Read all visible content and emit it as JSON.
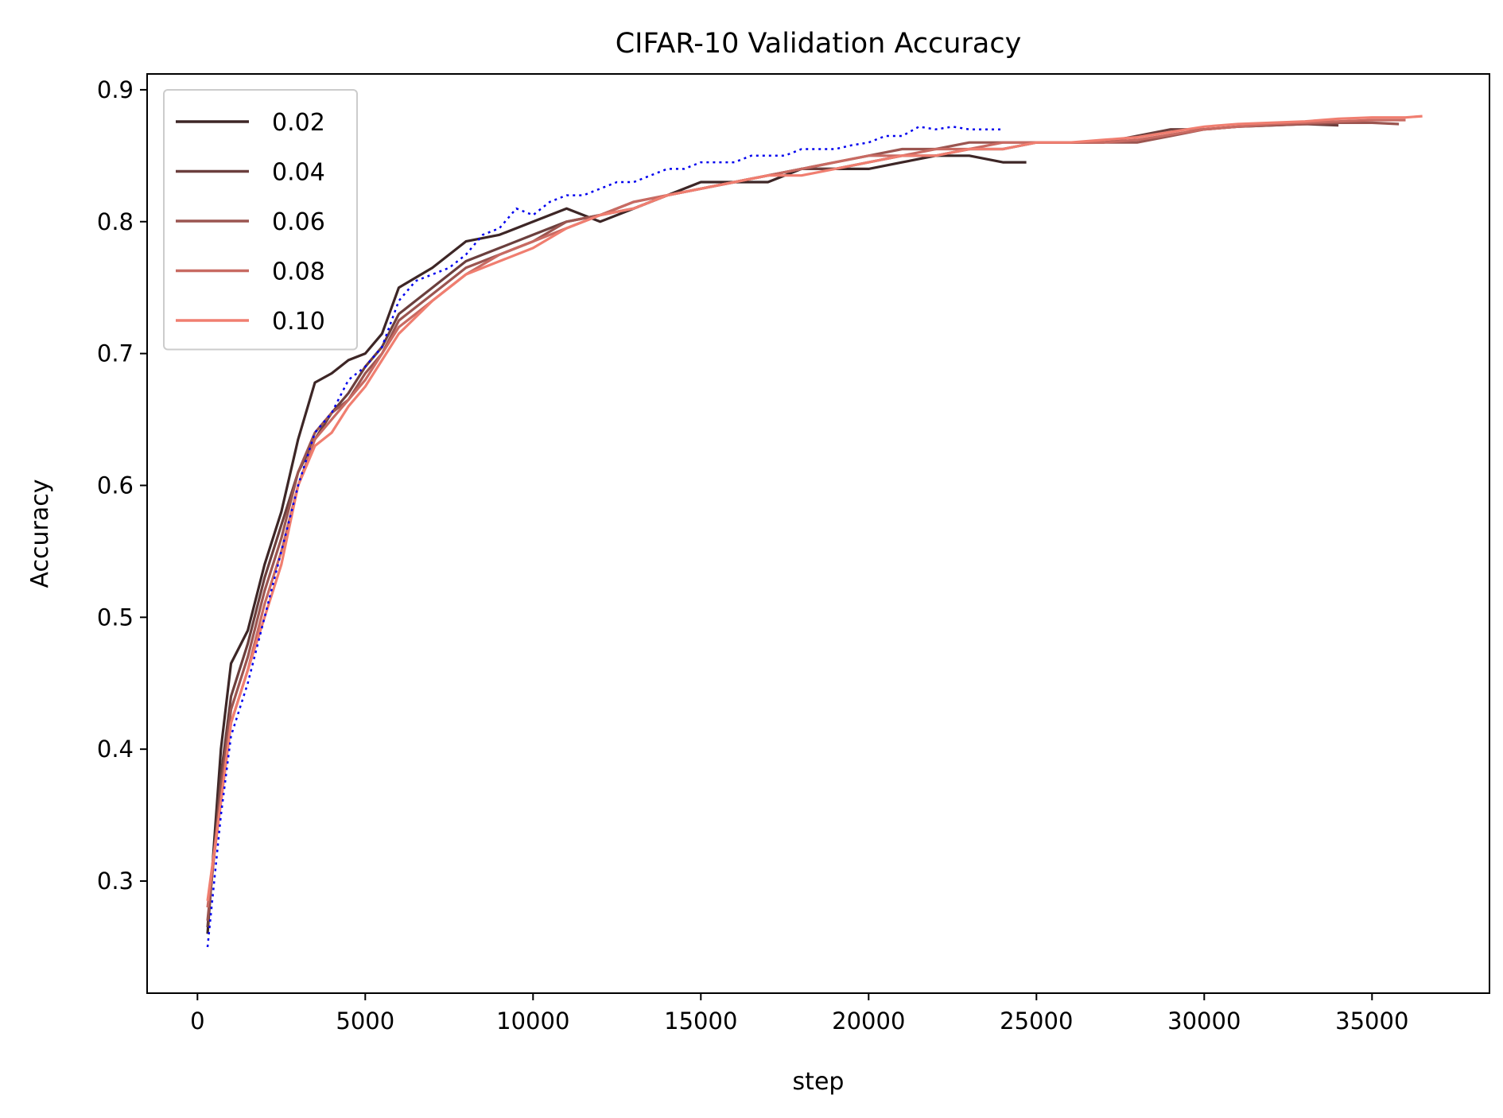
{
  "chart_data": {
    "type": "line",
    "title": "CIFAR-10 Validation Accuracy",
    "xlabel": "step",
    "ylabel": "Accuracy",
    "xlim": [
      -1500,
      38500
    ],
    "ylim": [
      0.215,
      0.912
    ],
    "xticks": [
      0,
      5000,
      10000,
      15000,
      20000,
      25000,
      30000,
      35000
    ],
    "yticks": [
      0.3,
      0.4,
      0.5,
      0.6,
      0.7,
      0.8,
      0.9
    ],
    "xtick_labels": [
      "0",
      "5000",
      "10000",
      "15000",
      "20000",
      "25000",
      "30000",
      "35000"
    ],
    "ytick_labels": [
      "0.3",
      "0.4",
      "0.5",
      "0.6",
      "0.7",
      "0.8",
      "0.9"
    ],
    "grid": false,
    "legend": "upper-left",
    "series": [
      {
        "name": "0.02",
        "color": "#3d2626",
        "dash": "solid",
        "x": [
          300,
          700,
          1000,
          1500,
          2000,
          2500,
          3000,
          3500,
          4000,
          4500,
          5000,
          5500,
          6000,
          7000,
          8000,
          9000,
          10000,
          11000,
          12000,
          13000,
          14000,
          15000,
          16000,
          17000,
          18000,
          19000,
          20000,
          21000,
          22000,
          23000,
          24000,
          24700
        ],
        "y": [
          0.26,
          0.4,
          0.465,
          0.49,
          0.54,
          0.58,
          0.635,
          0.678,
          0.685,
          0.695,
          0.7,
          0.715,
          0.75,
          0.765,
          0.785,
          0.79,
          0.8,
          0.81,
          0.8,
          0.81,
          0.82,
          0.83,
          0.83,
          0.83,
          0.84,
          0.84,
          0.84,
          0.845,
          0.85,
          0.85,
          0.845,
          0.845
        ]
      },
      {
        "name": "0.04",
        "color": "#6b3f3d",
        "dash": "solid",
        "x": [
          300,
          700,
          1000,
          1500,
          2000,
          2500,
          3000,
          3500,
          4000,
          4500,
          5000,
          5500,
          6000,
          7000,
          8000,
          9000,
          10000,
          11000,
          12000,
          13000,
          14000,
          15000,
          16000,
          17000,
          18000,
          19000,
          20000,
          21000,
          22000,
          23000,
          24000,
          25000,
          26000,
          27000,
          28000,
          29000,
          30000,
          31000,
          32000,
          33000,
          34000
        ],
        "y": [
          0.265,
          0.38,
          0.44,
          0.48,
          0.53,
          0.57,
          0.61,
          0.635,
          0.655,
          0.67,
          0.69,
          0.705,
          0.73,
          0.75,
          0.77,
          0.78,
          0.79,
          0.8,
          0.805,
          0.81,
          0.82,
          0.825,
          0.83,
          0.835,
          0.84,
          0.84,
          0.845,
          0.85,
          0.85,
          0.855,
          0.855,
          0.86,
          0.86,
          0.86,
          0.865,
          0.87,
          0.87,
          0.872,
          0.873,
          0.874,
          0.873
        ]
      },
      {
        "name": "0.06",
        "color": "#9b5550",
        "dash": "solid",
        "x": [
          300,
          700,
          1000,
          1500,
          2000,
          2500,
          3000,
          3500,
          4000,
          4500,
          5000,
          5500,
          6000,
          7000,
          8000,
          9000,
          10000,
          11000,
          12000,
          13000,
          14000,
          15000,
          16000,
          17000,
          18000,
          19000,
          20000,
          21000,
          22000,
          23000,
          24000,
          25000,
          26000,
          27000,
          28000,
          29000,
          30000,
          31000,
          32000,
          33000,
          34000,
          35000,
          35800
        ],
        "y": [
          0.27,
          0.37,
          0.43,
          0.47,
          0.52,
          0.56,
          0.61,
          0.64,
          0.655,
          0.665,
          0.685,
          0.7,
          0.725,
          0.745,
          0.765,
          0.775,
          0.785,
          0.8,
          0.805,
          0.815,
          0.82,
          0.825,
          0.83,
          0.835,
          0.84,
          0.845,
          0.85,
          0.855,
          0.855,
          0.86,
          0.86,
          0.86,
          0.86,
          0.86,
          0.86,
          0.865,
          0.87,
          0.872,
          0.873,
          0.874,
          0.875,
          0.875,
          0.874
        ]
      },
      {
        "name": "0.08",
        "color": "#c86a62",
        "dash": "solid",
        "x": [
          300,
          700,
          1000,
          1500,
          2000,
          2500,
          3000,
          3500,
          4000,
          4500,
          5000,
          5500,
          6000,
          7000,
          8000,
          9000,
          10000,
          11000,
          12000,
          13000,
          14000,
          15000,
          16000,
          17000,
          18000,
          19000,
          20000,
          21000,
          22000,
          23000,
          24000,
          25000,
          26000,
          27000,
          28000,
          29000,
          30000,
          31000,
          32000,
          33000,
          34000,
          35000,
          36000
        ],
        "y": [
          0.28,
          0.36,
          0.42,
          0.46,
          0.51,
          0.55,
          0.6,
          0.635,
          0.65,
          0.665,
          0.68,
          0.7,
          0.72,
          0.74,
          0.76,
          0.775,
          0.785,
          0.795,
          0.805,
          0.815,
          0.82,
          0.825,
          0.83,
          0.835,
          0.84,
          0.845,
          0.85,
          0.85,
          0.855,
          0.855,
          0.86,
          0.86,
          0.86,
          0.86,
          0.862,
          0.866,
          0.87,
          0.872,
          0.874,
          0.875,
          0.876,
          0.877,
          0.877
        ]
      },
      {
        "name": "0.10",
        "color": "#f07e70",
        "dash": "solid",
        "x": [
          300,
          700,
          1000,
          1500,
          2000,
          2500,
          3000,
          3500,
          4000,
          4500,
          5000,
          5500,
          6000,
          7000,
          8000,
          9000,
          10000,
          11000,
          12000,
          13000,
          14000,
          15000,
          16000,
          17000,
          18000,
          19000,
          20000,
          21000,
          22000,
          23000,
          24000,
          25000,
          26000,
          27000,
          28000,
          29000,
          30000,
          31000,
          32000,
          33000,
          34000,
          35000,
          36000,
          36500
        ],
        "y": [
          0.285,
          0.36,
          0.42,
          0.46,
          0.5,
          0.54,
          0.6,
          0.63,
          0.64,
          0.66,
          0.675,
          0.695,
          0.715,
          0.74,
          0.76,
          0.77,
          0.78,
          0.795,
          0.805,
          0.81,
          0.82,
          0.825,
          0.83,
          0.835,
          0.835,
          0.84,
          0.845,
          0.85,
          0.85,
          0.855,
          0.855,
          0.86,
          0.86,
          0.862,
          0.864,
          0.868,
          0.872,
          0.874,
          0.875,
          0.876,
          0.878,
          0.879,
          0.879,
          0.88
        ]
      },
      {
        "name": "",
        "color": "#0000ee",
        "dash": "dotted",
        "x": [
          300,
          700,
          1000,
          1500,
          2000,
          2500,
          3000,
          3500,
          4000,
          4500,
          5000,
          5500,
          6000,
          6500,
          7000,
          7500,
          8000,
          8500,
          9000,
          9500,
          10000,
          10500,
          11000,
          11500,
          12000,
          12500,
          13000,
          13500,
          14000,
          14500,
          15000,
          15500,
          16000,
          16500,
          17000,
          17500,
          18000,
          18500,
          19000,
          19500,
          20000,
          20500,
          21000,
          21500,
          22000,
          22500,
          23000,
          23500,
          24000
        ],
        "y": [
          0.25,
          0.35,
          0.41,
          0.45,
          0.5,
          0.55,
          0.6,
          0.64,
          0.655,
          0.68,
          0.69,
          0.705,
          0.74,
          0.755,
          0.76,
          0.765,
          0.775,
          0.79,
          0.795,
          0.81,
          0.805,
          0.815,
          0.82,
          0.82,
          0.825,
          0.83,
          0.83,
          0.835,
          0.84,
          0.84,
          0.845,
          0.845,
          0.845,
          0.85,
          0.85,
          0.85,
          0.855,
          0.855,
          0.855,
          0.858,
          0.86,
          0.865,
          0.865,
          0.872,
          0.87,
          0.872,
          0.87,
          0.87,
          0.87
        ]
      }
    ]
  }
}
